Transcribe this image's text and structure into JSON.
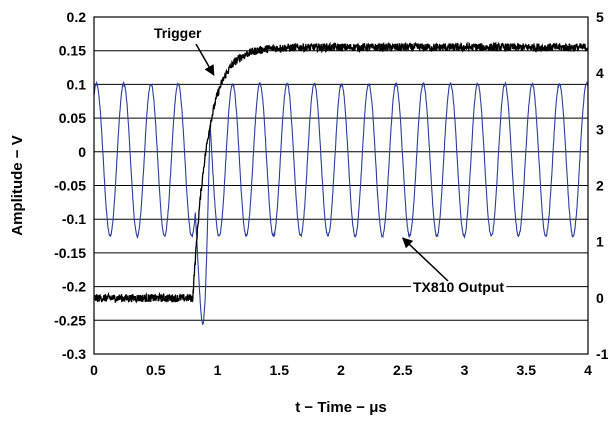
{
  "chart_data": {
    "type": "line",
    "xlabel": "t − Time − μs",
    "ylabel": "Amplitude − V",
    "xlim": [
      0,
      4
    ],
    "ylim": [
      -0.3,
      0.2
    ],
    "y2lim": [
      -1,
      5
    ],
    "grid": "horizontal",
    "x_ticks": [
      "0",
      "0.5",
      "1",
      "1.5",
      "2",
      "2.5",
      "3",
      "3.5",
      "4"
    ],
    "y_ticks": [
      "0.2",
      "0.15",
      "0.1",
      "0.05",
      "0",
      "-0.05",
      "-0.1",
      "-0.15",
      "-0.2",
      "-0.25",
      "-0.3"
    ],
    "y2_ticks": [
      "5",
      "4",
      "3",
      "2",
      "1",
      "0",
      "-1"
    ],
    "annotations": [
      {
        "text": "Trigger",
        "target_x": 0.97,
        "target_y": 0.114
      },
      {
        "text": "TX810 Output",
        "target_x": 2.5,
        "target_y": -0.128
      }
    ],
    "series": [
      {
        "name": "TX810 Output",
        "color": "#2b3d9e",
        "kind": "sine",
        "amplitude": 0.113,
        "offset": -0.012,
        "period": 0.2205,
        "crest_time": 0.02,
        "dropout": {
          "start": 0.82,
          "end": 0.94,
          "min": -0.255
        }
      },
      {
        "name": "Trigger",
        "color": "#000000",
        "kind": "step",
        "low": -0.217,
        "high": 0.155,
        "rise_start": 0.8,
        "tau": 0.12,
        "noise": 0.006
      }
    ]
  }
}
